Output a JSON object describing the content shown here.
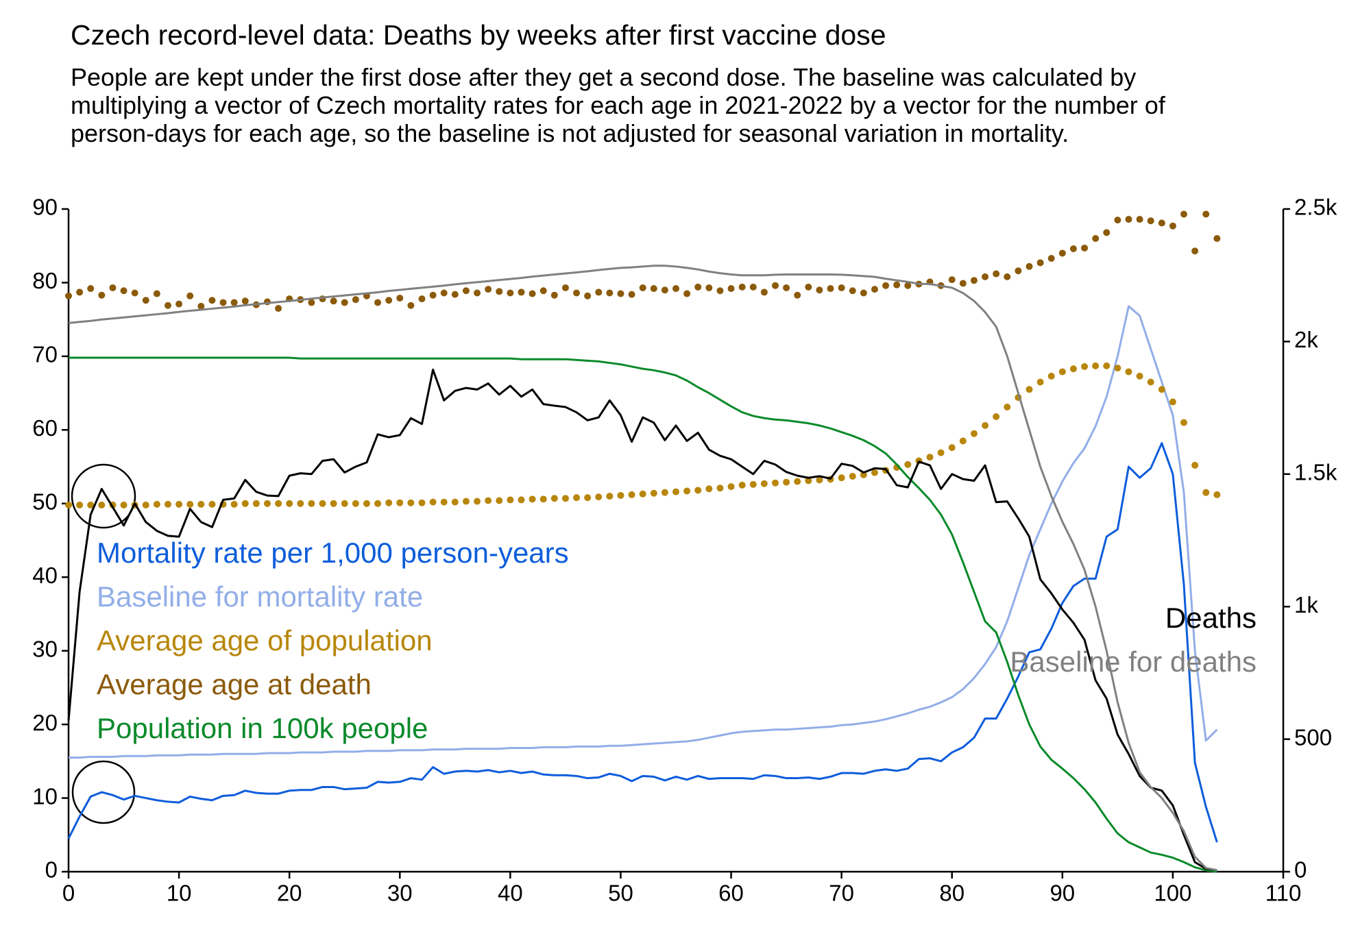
{
  "chart_data": {
    "type": "line",
    "title": "Czech record-level data: Deaths by weeks after first vaccine dose",
    "subtitle": "People are kept under the first dose after they get a second dose. The baseline was calculated by multiplying a vector of Czech mortality rates for each age in 2021-2022 by a vector for the number of person-days for each age, so the baseline is not adjusted for seasonal variation in mortality.",
    "x": [
      0,
      1,
      2,
      3,
      4,
      5,
      6,
      7,
      8,
      9,
      10,
      11,
      12,
      13,
      14,
      15,
      16,
      17,
      18,
      19,
      20,
      21,
      22,
      23,
      24,
      25,
      26,
      27,
      28,
      29,
      30,
      31,
      32,
      33,
      34,
      35,
      36,
      37,
      38,
      39,
      40,
      41,
      42,
      43,
      44,
      45,
      46,
      47,
      48,
      49,
      50,
      51,
      52,
      53,
      54,
      55,
      56,
      57,
      58,
      59,
      60,
      61,
      62,
      63,
      64,
      65,
      66,
      67,
      68,
      69,
      70,
      71,
      72,
      73,
      74,
      75,
      76,
      77,
      78,
      79,
      80,
      81,
      82,
      83,
      84,
      85,
      86,
      87,
      88,
      89,
      90,
      91,
      92,
      93,
      94,
      95,
      96,
      97,
      98,
      99,
      100,
      101,
      102,
      103,
      104
    ],
    "xlim": [
      0,
      110
    ],
    "xticks": [
      0,
      10,
      20,
      30,
      40,
      50,
      60,
      70,
      80,
      90,
      100,
      110
    ],
    "ylim": [
      0,
      90
    ],
    "yticks": [
      0,
      10,
      20,
      30,
      40,
      50,
      60,
      70,
      80,
      90
    ],
    "y2lim": [
      0,
      2500
    ],
    "y2ticks": [
      0,
      500,
      {
        "value": 1000,
        "label": "1k"
      },
      {
        "value": 1500,
        "label": "1.5k"
      },
      {
        "value": 2000,
        "label": "2k"
      },
      {
        "value": 2500,
        "label": "2.5k"
      }
    ],
    "series": [
      {
        "name": "Mortality rate per 1,000 person-years",
        "color": "#0d5ddb",
        "mode": "line",
        "axis": "y",
        "values": [
          4.5,
          7.5,
          10.2,
          10.8,
          10.4,
          9.8,
          10.3,
          10,
          9.7,
          9.5,
          9.4,
          10.2,
          9.9,
          9.7,
          10.3,
          10.4,
          11,
          10.7,
          10.6,
          10.6,
          11,
          11.1,
          11.1,
          11.5,
          11.5,
          11.2,
          11.3,
          11.4,
          12.2,
          12.1,
          12.2,
          12.7,
          12.5,
          14.2,
          13.3,
          13.6,
          13.7,
          13.6,
          13.8,
          13.5,
          13.7,
          13.4,
          13.6,
          13.2,
          13.1,
          13.1,
          13,
          12.7,
          12.8,
          13.3,
          13,
          12.3,
          13,
          12.9,
          12.4,
          12.9,
          12.5,
          13,
          12.6,
          12.7,
          12.7,
          12.7,
          12.6,
          13.1,
          13,
          12.7,
          12.7,
          12.8,
          12.6,
          12.9,
          13.4,
          13.4,
          13.3,
          13.7,
          13.9,
          13.7,
          14,
          15.3,
          15.4,
          15,
          16.2,
          16.9,
          18.2,
          20.8,
          20.8,
          23.5,
          26.5,
          29.8,
          30.2,
          33,
          36.5,
          38.8,
          39.8,
          39.8,
          45.5,
          46.5,
          55,
          53.5,
          54.8,
          58.2,
          54,
          39,
          14.8,
          8.8,
          4
        ]
      },
      {
        "name": "Baseline for mortality rate",
        "color": "#92aee8",
        "mode": "line",
        "axis": "y",
        "values": [
          15.5,
          15.5,
          15.6,
          15.6,
          15.6,
          15.7,
          15.7,
          15.7,
          15.8,
          15.8,
          15.8,
          15.9,
          15.9,
          15.9,
          16.0,
          16.0,
          16.0,
          16.0,
          16.1,
          16.1,
          16.1,
          16.2,
          16.2,
          16.2,
          16.3,
          16.3,
          16.3,
          16.4,
          16.4,
          16.4,
          16.5,
          16.5,
          16.5,
          16.6,
          16.6,
          16.6,
          16.7,
          16.7,
          16.7,
          16.7,
          16.8,
          16.8,
          16.8,
          16.9,
          16.9,
          16.9,
          17.0,
          17.0,
          17.0,
          17.1,
          17.1,
          17.2,
          17.3,
          17.4,
          17.5,
          17.6,
          17.7,
          17.9,
          18.2,
          18.5,
          18.8,
          19.0,
          19.1,
          19.2,
          19.3,
          19.3,
          19.4,
          19.5,
          19.6,
          19.7,
          19.9,
          20.0,
          20.2,
          20.4,
          20.7,
          21.1,
          21.5,
          22.0,
          22.4,
          23.0,
          23.7,
          24.8,
          26.3,
          28.2,
          30.5,
          34.0,
          38.5,
          43.0,
          46.5,
          50.0,
          53.0,
          55.5,
          57.5,
          60.5,
          64.5,
          70.0,
          76.8,
          75.5,
          71.0,
          66.5,
          62.0,
          51.5,
          30.0,
          17.8,
          19.3
        ]
      },
      {
        "name": "Average age of population",
        "color": "#b8860b",
        "mode": "markers",
        "axis": "y",
        "values": [
          49.8,
          49.8,
          49.8,
          49.8,
          49.8,
          49.8,
          49.8,
          49.8,
          49.9,
          49.9,
          49.9,
          49.9,
          49.9,
          49.9,
          49.9,
          49.9,
          50.0,
          50.0,
          50.0,
          50.0,
          50.0,
          50.0,
          50.0,
          50.0,
          50.0,
          50.0,
          50.0,
          50.0,
          50.0,
          50.1,
          50.1,
          50.1,
          50.1,
          50.2,
          50.2,
          50.2,
          50.3,
          50.3,
          50.4,
          50.4,
          50.5,
          50.5,
          50.6,
          50.6,
          50.7,
          50.7,
          50.8,
          50.8,
          50.9,
          51.0,
          51.1,
          51.2,
          51.3,
          51.4,
          51.5,
          51.6,
          51.7,
          51.8,
          52.0,
          52.1,
          52.3,
          52.5,
          52.6,
          52.7,
          52.8,
          52.9,
          53.0,
          53.1,
          53.2,
          53.3,
          53.5,
          53.7,
          53.9,
          54.2,
          54.5,
          54.9,
          55.3,
          55.8,
          56.3,
          56.9,
          57.6,
          58.5,
          59.5,
          60.6,
          61.8,
          63.1,
          64.4,
          65.5,
          66.5,
          67.3,
          67.9,
          68.3,
          68.6,
          68.7,
          68.7,
          68.4,
          67.9,
          67.3,
          66.5,
          65.5,
          63.8,
          61.0,
          55.2,
          51.5,
          51.2
        ]
      },
      {
        "name": "Average age at death",
        "color": "#8b5a0a",
        "mode": "markers",
        "axis": "y",
        "values": [
          78.2,
          78.7,
          79.2,
          78.3,
          79.3,
          78.9,
          78.6,
          77.6,
          78.5,
          76.9,
          77.1,
          78.2,
          76.8,
          77.6,
          77.3,
          77.3,
          77.5,
          77.0,
          77.4,
          76.5,
          77.8,
          77.7,
          77.3,
          77.8,
          77.5,
          77.3,
          77.7,
          78.2,
          77.3,
          77.6,
          77.9,
          76.9,
          77.8,
          78.3,
          78.6,
          78.4,
          78.9,
          78.6,
          79.1,
          78.8,
          78.6,
          78.7,
          78.5,
          78.9,
          78.3,
          79.3,
          78.6,
          78.2,
          78.7,
          78.6,
          78.5,
          78.4,
          79.3,
          79.2,
          79.0,
          79.2,
          78.5,
          79.4,
          79.3,
          78.9,
          79.2,
          79.4,
          79.4,
          78.7,
          79.6,
          79.3,
          78.3,
          79.4,
          79.0,
          79.2,
          79.3,
          78.9,
          78.6,
          79.1,
          79.6,
          79.7,
          79.6,
          79.8,
          80.1,
          79.6,
          80.4,
          79.9,
          80.3,
          80.8,
          81.2,
          80.8,
          81.6,
          82.2,
          82.7,
          83.3,
          84.0,
          84.6,
          84.7,
          86.0,
          86.8,
          88.5,
          88.6,
          88.6,
          88.4,
          88.1,
          87.7,
          89.3,
          84.3,
          89.3,
          86.0
        ]
      },
      {
        "name": "Population in 100k people",
        "color": "#0a8a2a",
        "mode": "line",
        "axis": "y",
        "values": [
          69.8,
          69.8,
          69.8,
          69.8,
          69.8,
          69.8,
          69.8,
          69.8,
          69.8,
          69.8,
          69.8,
          69.8,
          69.8,
          69.8,
          69.8,
          69.8,
          69.8,
          69.8,
          69.8,
          69.8,
          69.8,
          69.7,
          69.7,
          69.7,
          69.7,
          69.7,
          69.7,
          69.7,
          69.7,
          69.7,
          69.7,
          69.7,
          69.7,
          69.7,
          69.7,
          69.7,
          69.7,
          69.7,
          69.7,
          69.7,
          69.7,
          69.6,
          69.6,
          69.6,
          69.6,
          69.6,
          69.5,
          69.4,
          69.3,
          69.1,
          68.9,
          68.6,
          68.3,
          68.1,
          67.8,
          67.4,
          66.7,
          65.8,
          65.0,
          64.1,
          63.2,
          62.4,
          61.9,
          61.6,
          61.4,
          61.3,
          61.1,
          60.9,
          60.6,
          60.2,
          59.7,
          59.2,
          58.6,
          57.8,
          56.8,
          55.3,
          53.6,
          52.1,
          50.5,
          48.5,
          45.8,
          42.0,
          38.0,
          34.0,
          32.5,
          28.5,
          24.0,
          20.0,
          17.0,
          15.2,
          14.0,
          12.7,
          11.2,
          9.4,
          7.2,
          5.2,
          4.0,
          3.3,
          2.6,
          2.3,
          1.9,
          1.3,
          0.6,
          0.2,
          0.0
        ]
      },
      {
        "name": "Deaths",
        "color": "#000000",
        "mode": "line",
        "axis": "y2",
        "values": [
          570,
          1056,
          1347,
          1444,
          1375,
          1306,
          1389,
          1319,
          1286,
          1267,
          1264,
          1369,
          1319,
          1300,
          1403,
          1408,
          1478,
          1433,
          1419,
          1417,
          1494,
          1503,
          1500,
          1550,
          1556,
          1506,
          1528,
          1544,
          1650,
          1639,
          1647,
          1711,
          1689,
          1894,
          1778,
          1814,
          1825,
          1819,
          1842,
          1800,
          1833,
          1792,
          1819,
          1764,
          1758,
          1753,
          1733,
          1703,
          1714,
          1778,
          1722,
          1622,
          1714,
          1694,
          1628,
          1683,
          1625,
          1656,
          1592,
          1569,
          1556,
          1528,
          1500,
          1550,
          1536,
          1508,
          1494,
          1486,
          1492,
          1483,
          1539,
          1531,
          1506,
          1522,
          1519,
          1458,
          1450,
          1547,
          1533,
          1444,
          1500,
          1481,
          1475,
          1533,
          1394,
          1397,
          1333,
          1264,
          1103,
          1050,
          989,
          939,
          875,
          722,
          653,
          517,
          444,
          361,
          317,
          306,
          250,
          139,
          36,
          11,
          6
        ]
      },
      {
        "name": "Baseline for deaths",
        "color": "#808080",
        "mode": "line",
        "axis": "y2",
        "values": [
          2070,
          2074,
          2078,
          2083,
          2087,
          2091,
          2095,
          2099,
          2103,
          2107,
          2112,
          2116,
          2120,
          2124,
          2128,
          2132,
          2137,
          2141,
          2145,
          2149,
          2153,
          2157,
          2162,
          2166,
          2170,
          2174,
          2178,
          2182,
          2186,
          2191,
          2195,
          2199,
          2203,
          2207,
          2211,
          2216,
          2220,
          2224,
          2228,
          2232,
          2236,
          2240,
          2245,
          2249,
          2253,
          2257,
          2261,
          2265,
          2270,
          2274,
          2278,
          2280,
          2283,
          2286,
          2286,
          2283,
          2278,
          2272,
          2264,
          2258,
          2253,
          2250,
          2250,
          2250,
          2252,
          2253,
          2253,
          2253,
          2253,
          2253,
          2252,
          2250,
          2247,
          2244,
          2237,
          2231,
          2225,
          2218,
          2217,
          2210,
          2203,
          2183,
          2153,
          2111,
          2056,
          1945,
          1806,
          1667,
          1528,
          1417,
          1320,
          1236,
          1139,
          1000,
          833,
          639,
          486,
          375,
          319,
          278,
          222,
          153,
          56,
          14,
          6
        ]
      }
    ]
  }
}
